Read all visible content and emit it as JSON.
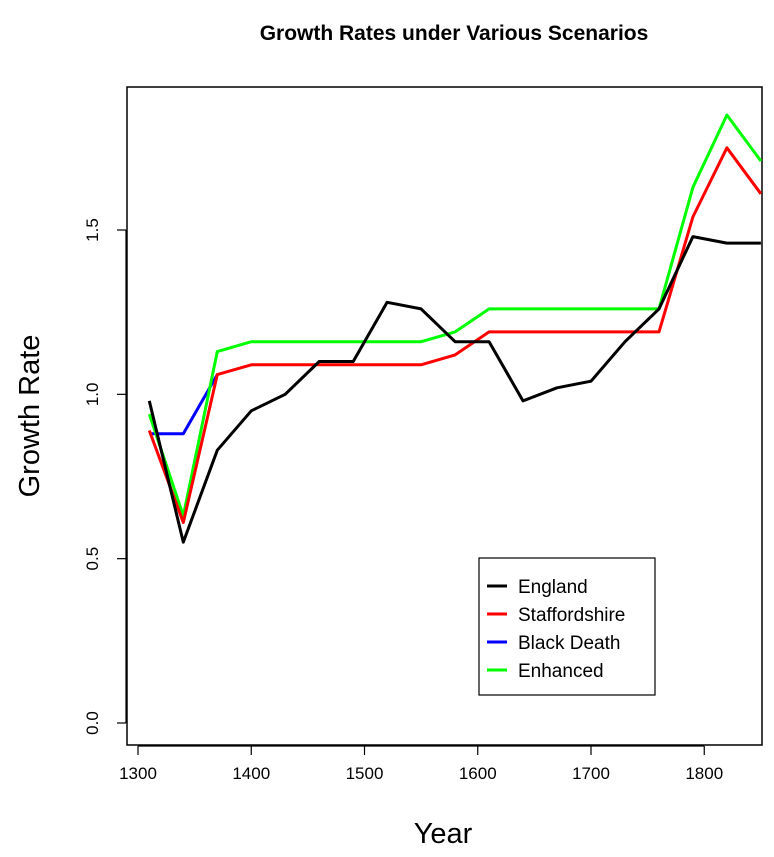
{
  "chart_data": {
    "type": "line",
    "title": "Growth Rates under Various Scenarios",
    "xlabel": "Year",
    "ylabel": "Growth Rate",
    "xlim": [
      1300,
      1850
    ],
    "ylim": [
      0.0,
      1.85
    ],
    "x_ticks": [
      1300,
      1400,
      1500,
      1600,
      1700,
      1800
    ],
    "x_tick_labels": [
      "1300",
      "1400",
      "1500",
      "1600",
      "1700",
      "1800"
    ],
    "y_ticks": [
      0.0,
      0.5,
      1.0,
      1.5
    ],
    "y_tick_labels": [
      "0.0",
      "0.5",
      "1.0",
      "1.5"
    ],
    "legend_position": "bottom-right",
    "grid": false,
    "series": [
      {
        "name": "Black Death",
        "color": "#0000ff",
        "x": [
          1310,
          1340,
          1370
        ],
        "y": [
          0.88,
          0.88,
          1.06
        ]
      },
      {
        "name": "Enhanced",
        "color": "#00ff00",
        "x": [
          1310,
          1340,
          1370,
          1400,
          1550,
          1580,
          1610,
          1760,
          1790,
          1820,
          1850
        ],
        "y": [
          0.94,
          0.63,
          1.13,
          1.16,
          1.16,
          1.19,
          1.26,
          1.26,
          1.63,
          1.85,
          1.71
        ]
      },
      {
        "name": "Staffordshire",
        "color": "#ff0000",
        "x": [
          1310,
          1340,
          1370,
          1400,
          1550,
          1580,
          1610,
          1760,
          1790,
          1820,
          1850
        ],
        "y": [
          0.89,
          0.61,
          1.06,
          1.09,
          1.09,
          1.12,
          1.19,
          1.19,
          1.54,
          1.75,
          1.61
        ]
      },
      {
        "name": "England",
        "color": "#000000",
        "x": [
          1310,
          1340,
          1370,
          1400,
          1430,
          1460,
          1490,
          1520,
          1550,
          1580,
          1610,
          1640,
          1670,
          1700,
          1730,
          1760,
          1790,
          1820,
          1850
        ],
        "y": [
          0.98,
          0.55,
          0.83,
          0.95,
          1.0,
          1.1,
          1.1,
          1.28,
          1.26,
          1.16,
          1.16,
          0.98,
          1.02,
          1.04,
          1.16,
          1.26,
          1.48,
          1.46,
          1.46
        ]
      }
    ],
    "legend": [
      {
        "label": "England",
        "color": "#000000"
      },
      {
        "label": "Staffordshire",
        "color": "#ff0000"
      },
      {
        "label": "Black Death",
        "color": "#0000ff"
      },
      {
        "label": "Enhanced",
        "color": "#00ff00"
      }
    ]
  }
}
